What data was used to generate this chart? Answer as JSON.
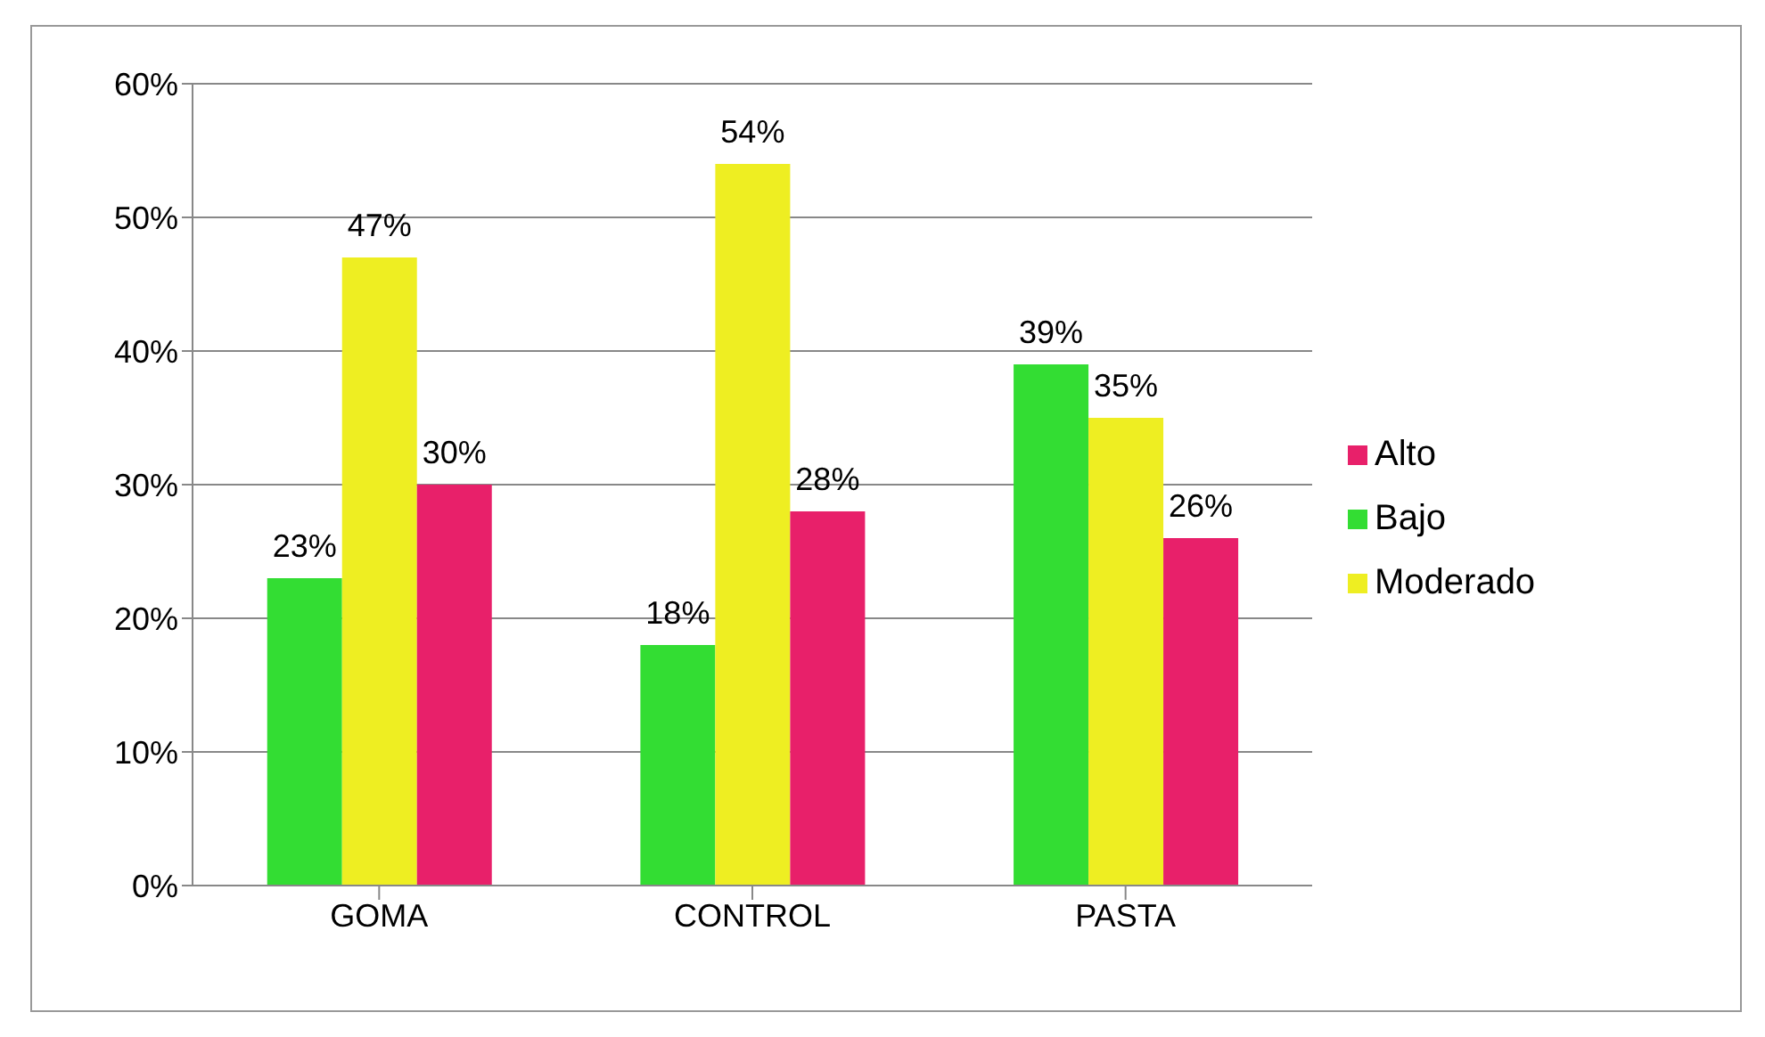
{
  "chart_data": {
    "type": "bar",
    "categories": [
      "GOMA",
      "CONTROL",
      "PASTA"
    ],
    "series": [
      {
        "name": "Bajo",
        "color": "#33dd33",
        "values": [
          23,
          18,
          39
        ],
        "value_labels": [
          "23%",
          "18%",
          "39%"
        ]
      },
      {
        "name": "Moderado",
        "color": "#eeee22",
        "values": [
          47,
          54,
          35
        ],
        "value_labels": [
          "47%",
          "54%",
          "35%"
        ]
      },
      {
        "name": "Alto",
        "color": "#e8206a",
        "values": [
          30,
          28,
          26
        ],
        "value_labels": [
          "30%",
          "28%",
          "26%"
        ]
      }
    ],
    "ylim": [
      0,
      60
    ],
    "yticks": [
      {
        "value": 0,
        "label": "0%"
      },
      {
        "value": 10,
        "label": "10%"
      },
      {
        "value": 20,
        "label": "20%"
      },
      {
        "value": 30,
        "label": "30%"
      },
      {
        "value": 40,
        "label": "40%"
      },
      {
        "value": 50,
        "label": "50%"
      },
      {
        "value": 60,
        "label": "60%"
      }
    ],
    "grid": "y",
    "legend": "right"
  }
}
